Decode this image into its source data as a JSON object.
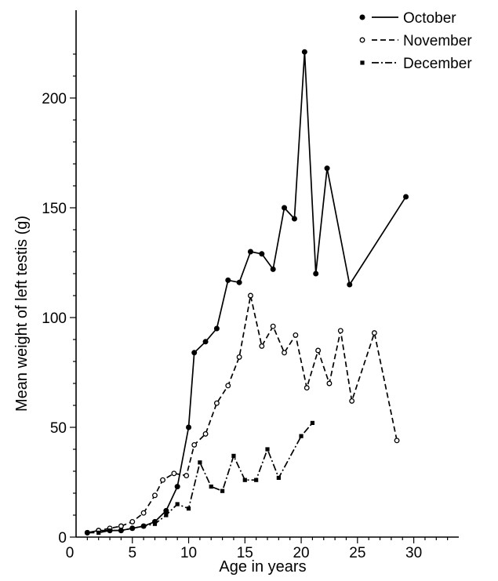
{
  "chart_data": {
    "type": "line",
    "title": "",
    "xlabel": "Age in years",
    "ylabel": "Mean weight of left testis (g)",
    "xlim": [
      0,
      34
    ],
    "ylim": [
      0,
      240
    ],
    "x_ticks": [
      0,
      5,
      10,
      15,
      20,
      25,
      30
    ],
    "y_ticks": [
      0,
      50,
      100,
      150,
      200
    ],
    "x_tick_labels": [
      "0",
      "5",
      "10",
      "15",
      "20",
      "25",
      "30"
    ],
    "y_tick_labels": [
      "0",
      "50",
      "100",
      "150",
      "200"
    ],
    "grid": false,
    "legend_position": "top-right",
    "series": [
      {
        "name": "October",
        "style": "solid",
        "marker": "filled-circle",
        "color": "#000000",
        "points": [
          [
            1,
            2
          ],
          [
            2,
            3
          ],
          [
            3,
            3
          ],
          [
            4,
            3
          ],
          [
            5,
            4
          ],
          [
            6,
            5
          ],
          [
            7,
            7
          ],
          [
            8,
            12
          ],
          [
            9,
            23
          ],
          [
            10,
            50
          ],
          [
            10.5,
            84
          ],
          [
            11.5,
            89
          ],
          [
            12.5,
            95
          ],
          [
            13.5,
            117
          ],
          [
            14.5,
            116
          ],
          [
            15.5,
            130
          ],
          [
            16.5,
            129
          ],
          [
            17.5,
            122
          ],
          [
            18.5,
            150
          ],
          [
            19.4,
            145
          ],
          [
            20.3,
            221
          ],
          [
            21.3,
            120
          ],
          [
            22.3,
            168
          ],
          [
            24.3,
            115
          ],
          [
            29.3,
            155
          ]
        ]
      },
      {
        "name": "November",
        "style": "dashed",
        "marker": "open-circle",
        "color": "#000000",
        "points": [
          [
            1,
            2
          ],
          [
            2,
            3
          ],
          [
            3,
            4
          ],
          [
            4,
            5
          ],
          [
            5,
            7
          ],
          [
            6,
            11
          ],
          [
            7,
            19
          ],
          [
            7.7,
            26
          ],
          [
            8.7,
            29
          ],
          [
            9.8,
            28
          ],
          [
            10.5,
            42
          ],
          [
            11.5,
            47
          ],
          [
            12.5,
            61
          ],
          [
            13.5,
            69
          ],
          [
            14.5,
            82
          ],
          [
            15.5,
            110
          ],
          [
            16.5,
            87
          ],
          [
            17.5,
            96
          ],
          [
            18.5,
            84
          ],
          [
            19.5,
            92
          ],
          [
            20.5,
            68
          ],
          [
            21.5,
            85
          ],
          [
            22.5,
            70
          ],
          [
            23.5,
            94
          ],
          [
            24.5,
            62
          ],
          [
            26.5,
            93
          ],
          [
            28.5,
            44
          ]
        ]
      },
      {
        "name": "December",
        "style": "dash-dot",
        "marker": "filled-square",
        "color": "#000000",
        "points": [
          [
            1,
            2
          ],
          [
            2,
            2
          ],
          [
            3,
            3
          ],
          [
            4,
            3
          ],
          [
            5,
            4
          ],
          [
            6,
            5
          ],
          [
            7,
            6
          ],
          [
            8,
            10
          ],
          [
            9,
            15
          ],
          [
            10,
            13
          ],
          [
            11,
            34
          ],
          [
            12,
            23
          ],
          [
            13,
            21
          ],
          [
            14,
            37
          ],
          [
            15,
            26
          ],
          [
            16,
            26
          ],
          [
            17,
            40
          ],
          [
            18,
            27
          ],
          [
            20,
            46
          ],
          [
            21,
            52
          ]
        ]
      }
    ]
  }
}
